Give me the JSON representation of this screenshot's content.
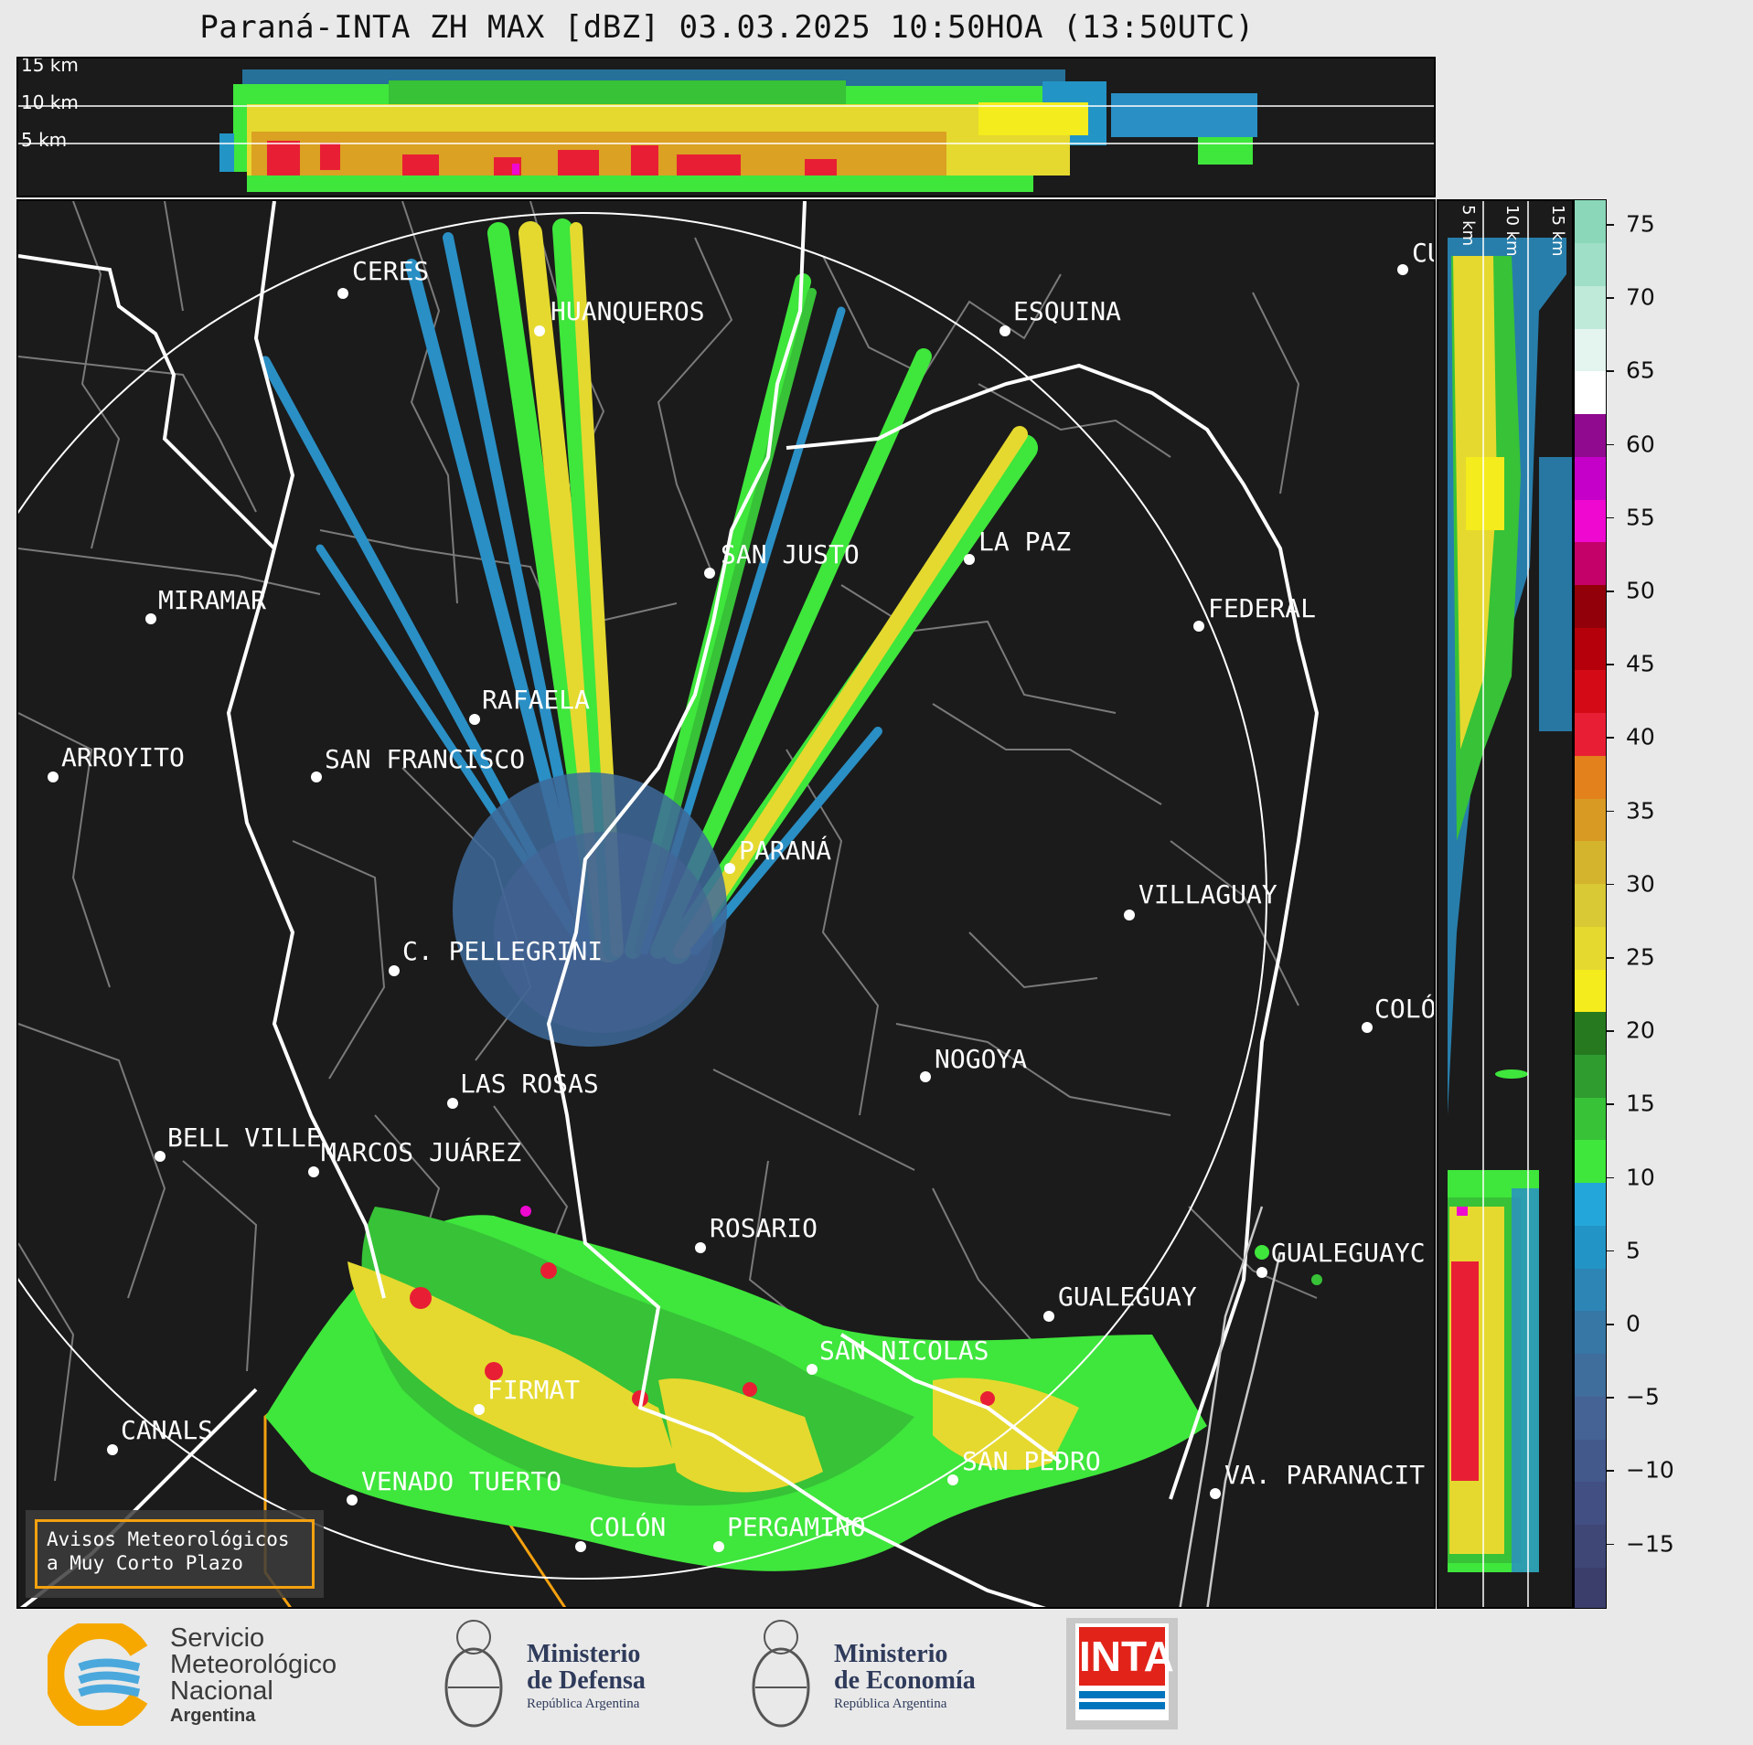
{
  "title": "Paraná-INTA ZH MAX [dBZ] 03.03.2025 10:50HOA (13:50UTC)",
  "altitude_labels": [
    "15 km",
    "10 km",
    "5 km"
  ],
  "colorbar": {
    "ticks": [
      "75",
      "70",
      "65",
      "60",
      "55",
      "50",
      "45",
      "40",
      "35",
      "30",
      "25",
      "20",
      "15",
      "10",
      "5",
      "0",
      "−5",
      "−10",
      "−15"
    ],
    "colors": [
      "#3b3d6b",
      "#3f4777",
      "#424f82",
      "#43598c",
      "#466395",
      "#3f6d9c",
      "#3677a6",
      "#2d85b5",
      "#2394c6",
      "#23a6d9",
      "#3fe63c",
      "#37c237",
      "#2f9c30",
      "#26791f",
      "#f4ec1c",
      "#e5d92f",
      "#d9c934",
      "#d4b42c",
      "#d89a22",
      "#e3811d",
      "#e81f34",
      "#d40b16",
      "#b5000c",
      "#92000a",
      "#c40069",
      "#ee08d0",
      "#c500c9",
      "#8f0a8e",
      "#ffffff",
      "#e3f5ee",
      "#bfe9d9",
      "#9fdec7",
      "#8ad8b9"
    ]
  },
  "cities": [
    {
      "name": "CERES"
    },
    {
      "name": "HUANQUEROS"
    },
    {
      "name": "ESQUINA"
    },
    {
      "name": "CU"
    },
    {
      "name": "SAN JUSTO"
    },
    {
      "name": "LA PAZ"
    },
    {
      "name": "MIRAMAR"
    },
    {
      "name": "FEDERAL"
    },
    {
      "name": "RAFAELA"
    },
    {
      "name": "ARROYITO"
    },
    {
      "name": "SAN FRANCISCO"
    },
    {
      "name": "PARANÁ"
    },
    {
      "name": "VILLAGUAY"
    },
    {
      "name": "C. PELLEGRINI"
    },
    {
      "name": "COLÓ"
    },
    {
      "name": "NOGOYA"
    },
    {
      "name": "LAS ROSAS"
    },
    {
      "name": "BELL VILLE"
    },
    {
      "name": "MARCOS JUÁREZ"
    },
    {
      "name": "ROSARIO"
    },
    {
      "name": "GUALEGUAYC"
    },
    {
      "name": "GUALEGUAY"
    },
    {
      "name": "SAN NICOLAS"
    },
    {
      "name": "FIRMAT"
    },
    {
      "name": "CANALS"
    },
    {
      "name": "SAN PEDRO"
    },
    {
      "name": "VENADO TUERTO"
    },
    {
      "name": "VA. PARANACIT"
    },
    {
      "name": "COLÓN"
    },
    {
      "name": "PERGAMINO"
    }
  ],
  "avisos": {
    "line1": "Avisos Meteorológicos",
    "line2": "a Muy Corto Plazo"
  },
  "logos": {
    "smn": {
      "line1": "Servicio",
      "line2": "Meteorológico",
      "line3": "Nacional",
      "line4": "Argentina"
    },
    "defensa": {
      "line1": "Ministerio",
      "line2": "de Defensa",
      "line3": "República Argentina"
    },
    "economia": {
      "line1": "Ministerio",
      "line2": "de Economía",
      "line3": "República Argentina"
    },
    "inta": {
      "text": "INTA"
    }
  }
}
